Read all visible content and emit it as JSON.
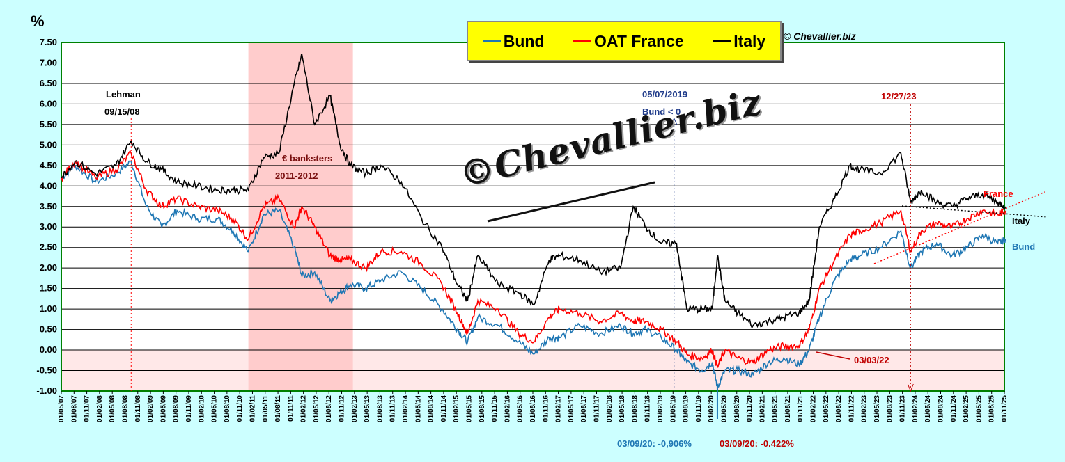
{
  "chart_data": {
    "type": "line",
    "ylabel": "%",
    "ylim": [
      -1.0,
      7.5
    ],
    "yticks": [
      "7.50",
      "7.00",
      "6.50",
      "6.00",
      "5.50",
      "5.00",
      "4.50",
      "4.00",
      "3.50",
      "3.00",
      "2.50",
      "2.00",
      "1.50",
      "1.00",
      "0.50",
      "0.00",
      "-0.50",
      "-1.00"
    ],
    "xticks": [
      "01/05/07",
      "01/08/07",
      "01/11/07",
      "01/02/08",
      "01/05/08",
      "01/08/08",
      "01/11/08",
      "01/02/09",
      "01/05/09",
      "01/08/09",
      "01/11/09",
      "01/02/10",
      "01/05/10",
      "01/08/10",
      "01/11/10",
      "01/02/11",
      "01/05/11",
      "01/08/11",
      "01/11/11",
      "01/02/12",
      "01/05/12",
      "01/08/12",
      "01/11/12",
      "01/02/13",
      "01/05/13",
      "01/08/13",
      "01/11/13",
      "01/02/14",
      "01/05/14",
      "01/08/14",
      "01/11/14",
      "01/02/15",
      "01/05/15",
      "01/08/15",
      "01/11/15",
      "01/02/16",
      "01/05/16",
      "01/08/16",
      "01/11/16",
      "01/02/17",
      "01/05/17",
      "01/08/17",
      "01/11/17",
      "01/02/18",
      "01/05/18",
      "01/08/18",
      "01/11/18",
      "01/02/19",
      "01/05/19",
      "01/08/19",
      "01/11/19",
      "01/02/20",
      "01/05/20",
      "01/08/20",
      "01/11/20",
      "01/02/21",
      "01/05/21",
      "01/08/21",
      "01/11/21",
      "01/02/22",
      "01/05/22",
      "01/08/22",
      "01/11/22",
      "01/02/23",
      "01/05/23",
      "01/08/23",
      "01/11/23",
      "01/02/24",
      "01/05/24",
      "01/08/24",
      "01/11/24",
      "01/02/25",
      "01/05/25",
      "01/08/25",
      "01/11/25"
    ],
    "grid": true,
    "x": [
      2007.33,
      2007.6,
      2008.0,
      2008.4,
      2008.7,
      2009.0,
      2009.3,
      2009.6,
      2010.0,
      2010.4,
      2010.7,
      2011.0,
      2011.3,
      2011.6,
      2011.9,
      2012.05,
      2012.3,
      2012.6,
      2012.8,
      2013.0,
      2013.3,
      2013.6,
      2014.0,
      2014.4,
      2014.8,
      2015.1,
      2015.3,
      2015.5,
      2015.9,
      2016.3,
      2016.6,
      2016.9,
      2017.1,
      2017.5,
      2017.9,
      2018.3,
      2018.55,
      2018.8,
      2019.1,
      2019.4,
      2019.6,
      2019.9,
      2020.1,
      2020.2,
      2020.35,
      2020.6,
      2020.9,
      2021.2,
      2021.5,
      2021.8,
      2022.0,
      2022.2,
      2022.5,
      2022.8,
      2023.0,
      2023.4,
      2023.8,
      2023.99,
      2024.2,
      2024.5,
      2024.8,
      2025.1,
      2025.4,
      2025.7,
      2025.85
    ],
    "series": [
      {
        "name": "Bund",
        "color": "#1f77b4",
        "values": [
          4.2,
          4.5,
          4.1,
          4.3,
          4.6,
          3.5,
          3.0,
          3.4,
          3.2,
          3.2,
          2.9,
          2.4,
          3.3,
          3.4,
          2.5,
          1.8,
          1.9,
          1.2,
          1.4,
          1.6,
          1.5,
          1.7,
          1.9,
          1.5,
          1.0,
          0.5,
          0.2,
          0.8,
          0.6,
          0.2,
          -0.1,
          0.3,
          0.3,
          0.6,
          0.4,
          0.6,
          0.4,
          0.5,
          0.3,
          0.0,
          -0.3,
          -0.5,
          -0.3,
          -0.906,
          -0.5,
          -0.5,
          -0.6,
          -0.3,
          -0.2,
          -0.35,
          0.0,
          0.8,
          1.7,
          2.2,
          2.3,
          2.5,
          2.9,
          2.0,
          2.4,
          2.6,
          2.3,
          2.5,
          2.8,
          2.6,
          2.7
        ]
      },
      {
        "name": "OAT France",
        "color": "#ff0000",
        "values": [
          4.2,
          4.6,
          4.2,
          4.4,
          4.8,
          3.9,
          3.5,
          3.7,
          3.5,
          3.4,
          3.2,
          2.7,
          3.5,
          3.7,
          3.0,
          3.5,
          3.0,
          2.3,
          2.2,
          2.2,
          2.0,
          2.4,
          2.4,
          2.1,
          1.6,
          0.9,
          0.4,
          1.2,
          1.0,
          0.4,
          0.2,
          0.8,
          1.0,
          0.9,
          0.7,
          0.9,
          0.7,
          0.7,
          0.5,
          0.2,
          -0.1,
          -0.2,
          0.0,
          -0.422,
          0.0,
          -0.2,
          -0.3,
          0.0,
          0.1,
          0.1,
          0.5,
          1.5,
          2.2,
          2.8,
          2.9,
          3.1,
          3.4,
          2.4,
          2.9,
          3.1,
          3.0,
          3.2,
          3.4,
          3.3,
          3.4
        ]
      },
      {
        "name": "Italy",
        "color": "#000000",
        "values": [
          4.2,
          4.6,
          4.3,
          4.5,
          5.1,
          4.6,
          4.4,
          4.1,
          4.0,
          3.9,
          3.9,
          3.9,
          4.7,
          4.8,
          6.5,
          7.2,
          5.5,
          6.2,
          5.0,
          4.5,
          4.3,
          4.5,
          4.1,
          3.2,
          2.5,
          1.6,
          1.2,
          2.3,
          1.6,
          1.4,
          1.1,
          2.2,
          2.3,
          2.2,
          1.9,
          2.0,
          3.5,
          3.0,
          2.6,
          2.6,
          1.0,
          1.0,
          1.0,
          2.3,
          1.2,
          0.9,
          0.6,
          0.7,
          0.8,
          0.9,
          1.2,
          3.0,
          3.7,
          4.5,
          4.4,
          4.3,
          4.8,
          3.6,
          3.9,
          3.6,
          3.5,
          3.7,
          3.8,
          3.6,
          3.5
        ]
      }
    ],
    "legend": {
      "position": "top-center",
      "items": [
        "Bund",
        "OAT France",
        "Italy"
      ]
    },
    "annotations": {
      "lehman": [
        "Lehman",
        "09/15/08"
      ],
      "banksters": [
        "€ banksters",
        "2011-2012"
      ],
      "bund_neg": [
        "05/07/2019",
        "Bund < 0"
      ],
      "date_1227": "12/27/23",
      "date_0303": "03/03/22",
      "bund_low": "03/09/20: -0,906%",
      "oat_low": "03/09/20:  -0.422%",
      "france_label": "France",
      "italy_label": "Italy",
      "bund_label": "Bund"
    }
  },
  "copyright": "© Chevallier.biz",
  "watermark": "©Chevallier.biz",
  "colors": {
    "background": "#ccffff",
    "plot_area": "#ffffff",
    "shade_red": "#ffcccc",
    "shade_neg": "#ffe8e8",
    "legend_bg": "#ffff00"
  }
}
